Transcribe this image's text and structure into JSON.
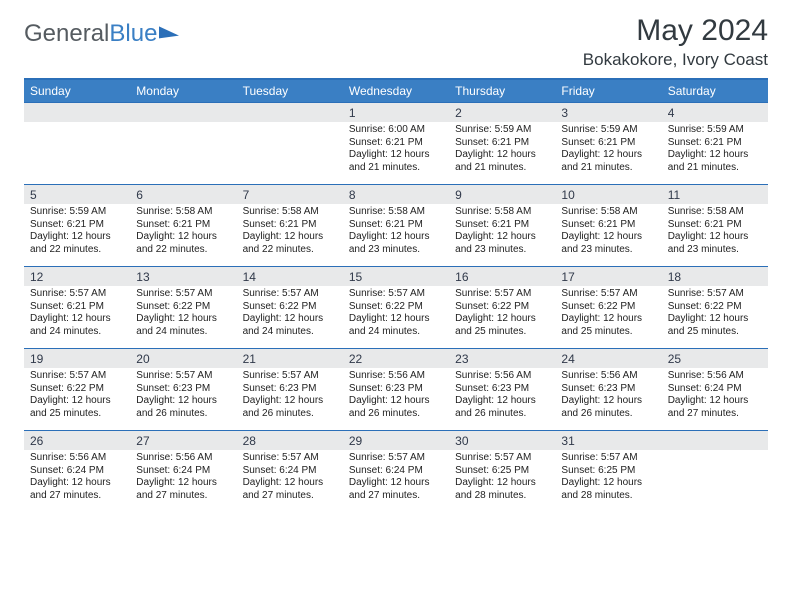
{
  "logo": {
    "word1": "General",
    "word2": "Blue"
  },
  "title": "May 2024",
  "location": "Bokakokore, Ivory Coast",
  "colors": {
    "header_bg": "#3a7fc4",
    "header_border": "#2b6fb8",
    "numrow_bg": "#e8e9ea",
    "text": "#222222",
    "title": "#323a40"
  },
  "daynames": [
    "Sunday",
    "Monday",
    "Tuesday",
    "Wednesday",
    "Thursday",
    "Friday",
    "Saturday"
  ],
  "weeks": [
    {
      "nums": [
        "",
        "",
        "",
        "1",
        "2",
        "3",
        "4"
      ],
      "cells": [
        null,
        null,
        null,
        {
          "sunrise": "Sunrise: 6:00 AM",
          "sunset": "Sunset: 6:21 PM",
          "daylight": "Daylight: 12 hours and 21 minutes."
        },
        {
          "sunrise": "Sunrise: 5:59 AM",
          "sunset": "Sunset: 6:21 PM",
          "daylight": "Daylight: 12 hours and 21 minutes."
        },
        {
          "sunrise": "Sunrise: 5:59 AM",
          "sunset": "Sunset: 6:21 PM",
          "daylight": "Daylight: 12 hours and 21 minutes."
        },
        {
          "sunrise": "Sunrise: 5:59 AM",
          "sunset": "Sunset: 6:21 PM",
          "daylight": "Daylight: 12 hours and 21 minutes."
        }
      ]
    },
    {
      "nums": [
        "5",
        "6",
        "7",
        "8",
        "9",
        "10",
        "11"
      ],
      "cells": [
        {
          "sunrise": "Sunrise: 5:59 AM",
          "sunset": "Sunset: 6:21 PM",
          "daylight": "Daylight: 12 hours and 22 minutes."
        },
        {
          "sunrise": "Sunrise: 5:58 AM",
          "sunset": "Sunset: 6:21 PM",
          "daylight": "Daylight: 12 hours and 22 minutes."
        },
        {
          "sunrise": "Sunrise: 5:58 AM",
          "sunset": "Sunset: 6:21 PM",
          "daylight": "Daylight: 12 hours and 22 minutes."
        },
        {
          "sunrise": "Sunrise: 5:58 AM",
          "sunset": "Sunset: 6:21 PM",
          "daylight": "Daylight: 12 hours and 23 minutes."
        },
        {
          "sunrise": "Sunrise: 5:58 AM",
          "sunset": "Sunset: 6:21 PM",
          "daylight": "Daylight: 12 hours and 23 minutes."
        },
        {
          "sunrise": "Sunrise: 5:58 AM",
          "sunset": "Sunset: 6:21 PM",
          "daylight": "Daylight: 12 hours and 23 minutes."
        },
        {
          "sunrise": "Sunrise: 5:58 AM",
          "sunset": "Sunset: 6:21 PM",
          "daylight": "Daylight: 12 hours and 23 minutes."
        }
      ]
    },
    {
      "nums": [
        "12",
        "13",
        "14",
        "15",
        "16",
        "17",
        "18"
      ],
      "cells": [
        {
          "sunrise": "Sunrise: 5:57 AM",
          "sunset": "Sunset: 6:21 PM",
          "daylight": "Daylight: 12 hours and 24 minutes."
        },
        {
          "sunrise": "Sunrise: 5:57 AM",
          "sunset": "Sunset: 6:22 PM",
          "daylight": "Daylight: 12 hours and 24 minutes."
        },
        {
          "sunrise": "Sunrise: 5:57 AM",
          "sunset": "Sunset: 6:22 PM",
          "daylight": "Daylight: 12 hours and 24 minutes."
        },
        {
          "sunrise": "Sunrise: 5:57 AM",
          "sunset": "Sunset: 6:22 PM",
          "daylight": "Daylight: 12 hours and 24 minutes."
        },
        {
          "sunrise": "Sunrise: 5:57 AM",
          "sunset": "Sunset: 6:22 PM",
          "daylight": "Daylight: 12 hours and 25 minutes."
        },
        {
          "sunrise": "Sunrise: 5:57 AM",
          "sunset": "Sunset: 6:22 PM",
          "daylight": "Daylight: 12 hours and 25 minutes."
        },
        {
          "sunrise": "Sunrise: 5:57 AM",
          "sunset": "Sunset: 6:22 PM",
          "daylight": "Daylight: 12 hours and 25 minutes."
        }
      ]
    },
    {
      "nums": [
        "19",
        "20",
        "21",
        "22",
        "23",
        "24",
        "25"
      ],
      "cells": [
        {
          "sunrise": "Sunrise: 5:57 AM",
          "sunset": "Sunset: 6:22 PM",
          "daylight": "Daylight: 12 hours and 25 minutes."
        },
        {
          "sunrise": "Sunrise: 5:57 AM",
          "sunset": "Sunset: 6:23 PM",
          "daylight": "Daylight: 12 hours and 26 minutes."
        },
        {
          "sunrise": "Sunrise: 5:57 AM",
          "sunset": "Sunset: 6:23 PM",
          "daylight": "Daylight: 12 hours and 26 minutes."
        },
        {
          "sunrise": "Sunrise: 5:56 AM",
          "sunset": "Sunset: 6:23 PM",
          "daylight": "Daylight: 12 hours and 26 minutes."
        },
        {
          "sunrise": "Sunrise: 5:56 AM",
          "sunset": "Sunset: 6:23 PM",
          "daylight": "Daylight: 12 hours and 26 minutes."
        },
        {
          "sunrise": "Sunrise: 5:56 AM",
          "sunset": "Sunset: 6:23 PM",
          "daylight": "Daylight: 12 hours and 26 minutes."
        },
        {
          "sunrise": "Sunrise: 5:56 AM",
          "sunset": "Sunset: 6:24 PM",
          "daylight": "Daylight: 12 hours and 27 minutes."
        }
      ]
    },
    {
      "nums": [
        "26",
        "27",
        "28",
        "29",
        "30",
        "31",
        ""
      ],
      "cells": [
        {
          "sunrise": "Sunrise: 5:56 AM",
          "sunset": "Sunset: 6:24 PM",
          "daylight": "Daylight: 12 hours and 27 minutes."
        },
        {
          "sunrise": "Sunrise: 5:56 AM",
          "sunset": "Sunset: 6:24 PM",
          "daylight": "Daylight: 12 hours and 27 minutes."
        },
        {
          "sunrise": "Sunrise: 5:57 AM",
          "sunset": "Sunset: 6:24 PM",
          "daylight": "Daylight: 12 hours and 27 minutes."
        },
        {
          "sunrise": "Sunrise: 5:57 AM",
          "sunset": "Sunset: 6:24 PM",
          "daylight": "Daylight: 12 hours and 27 minutes."
        },
        {
          "sunrise": "Sunrise: 5:57 AM",
          "sunset": "Sunset: 6:25 PM",
          "daylight": "Daylight: 12 hours and 28 minutes."
        },
        {
          "sunrise": "Sunrise: 5:57 AM",
          "sunset": "Sunset: 6:25 PM",
          "daylight": "Daylight: 12 hours and 28 minutes."
        },
        null
      ]
    }
  ]
}
